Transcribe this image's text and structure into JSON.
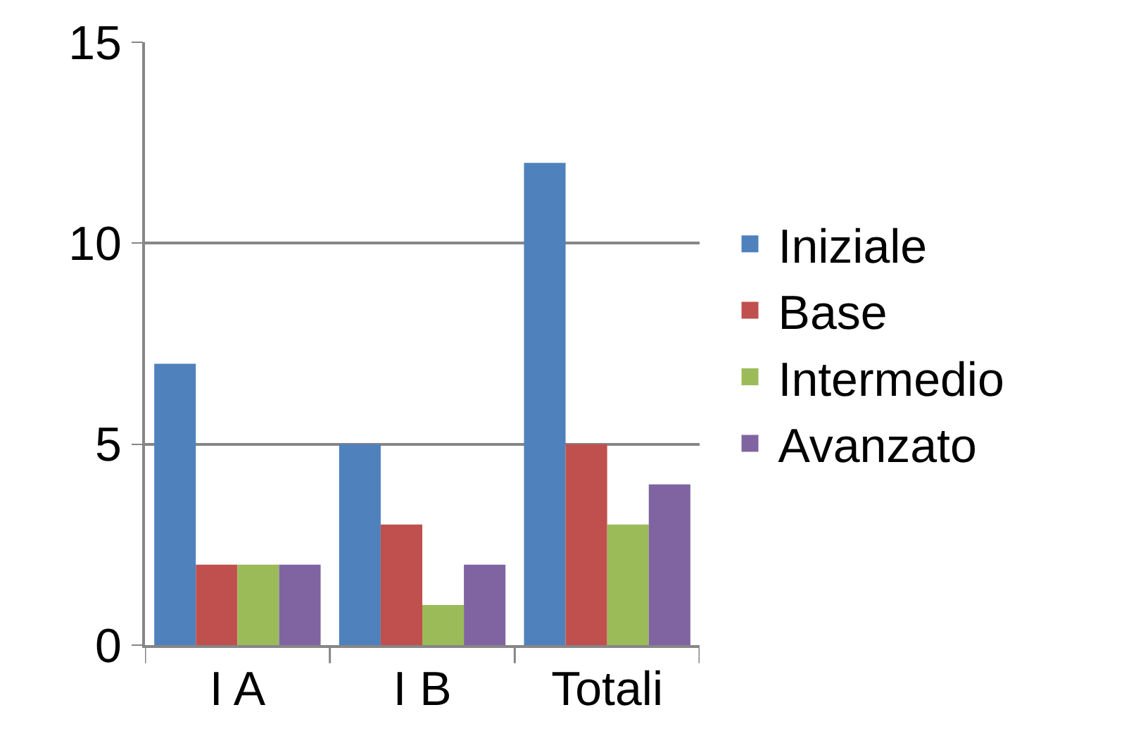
{
  "chart_data": {
    "type": "bar",
    "categories": [
      "I A",
      "I B",
      "Totali"
    ],
    "series": [
      {
        "name": "Iniziale",
        "color": "#4f81bd",
        "values": [
          7,
          5,
          12
        ]
      },
      {
        "name": "Base",
        "color": "#c0504d",
        "values": [
          2,
          3,
          5
        ]
      },
      {
        "name": "Intermedio",
        "color": "#9bbb59",
        "values": [
          2,
          1,
          3
        ]
      },
      {
        "name": "Avanzato",
        "color": "#8064a2",
        "values": [
          2,
          2,
          4
        ]
      }
    ],
    "ylim": [
      0,
      15
    ],
    "yticks": [
      0,
      5,
      10,
      15
    ],
    "grid": "y",
    "legend": "right"
  }
}
